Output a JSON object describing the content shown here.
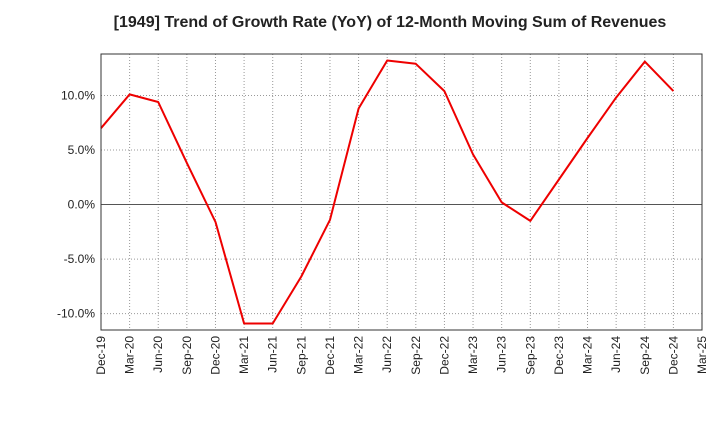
{
  "chart_data": {
    "type": "line",
    "title": "[1949]  Trend of Growth Rate (YoY) of 12-Month Moving Sum of Revenues",
    "xlabel": "",
    "ylabel": "",
    "x_ticks": [
      "Dec-19",
      "Mar-20",
      "Jun-20",
      "Sep-20",
      "Dec-20",
      "Mar-21",
      "Jun-21",
      "Sep-21",
      "Dec-21",
      "Mar-22",
      "Jun-22",
      "Sep-22",
      "Dec-22",
      "Mar-23",
      "Jun-23",
      "Sep-23",
      "Dec-23",
      "Mar-24",
      "Jun-24",
      "Sep-24",
      "Dec-24",
      "Mar-25"
    ],
    "y_ticks": [
      "10.0%",
      "5.0%",
      "0.0%",
      "-5.0%",
      "-10.0%"
    ],
    "y_tick_values": [
      10,
      5,
      0,
      -5,
      -10
    ],
    "ylim": [
      -11.5,
      13.8
    ],
    "grid": true,
    "series": [
      {
        "color": "#ee0000",
        "x": [
          "Dec-19",
          "Mar-20",
          "Jun-20",
          "Sep-20",
          "Dec-20",
          "Mar-21",
          "Jun-21",
          "Sep-21",
          "Dec-21",
          "Mar-22",
          "Jun-22",
          "Sep-22",
          "Dec-22",
          "Mar-23",
          "Jun-23",
          "Sep-23",
          "Dec-23",
          "Mar-24",
          "Jun-24",
          "Sep-24",
          "Dec-24"
        ],
        "values": [
          7.0,
          10.1,
          9.4,
          3.8,
          -1.6,
          -10.9,
          -10.9,
          -6.6,
          -1.4,
          8.8,
          13.2,
          12.9,
          10.4,
          4.6,
          0.2,
          -1.5,
          2.3,
          6.1,
          9.8,
          13.1,
          10.4
        ]
      }
    ]
  }
}
